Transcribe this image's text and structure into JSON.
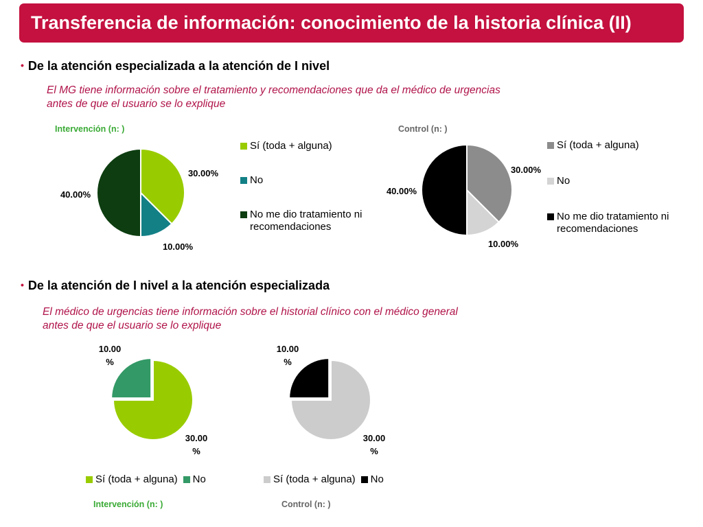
{
  "title": "Transferencia de información: conocimiento de la historia clínica (II)",
  "section1": {
    "heading": "De la atención especializada a la atención de I nivel",
    "subtitle": "El MG tiene información sobre el tratamiento y recomendaciones que da el médico de urgencias antes de que el usuario se lo explique"
  },
  "section2": {
    "heading": "De la atención de I nivel a la atención especializada",
    "subtitle": "El  médico de urgencias tiene información sobre el historial clínico con el médico general antes de que el usuario se lo explique"
  },
  "bullet": "•",
  "chart_data": [
    {
      "type": "pie",
      "title": "Intervención (n: )",
      "categories": [
        "Sí (toda + alguna)",
        "No",
        "No me dio tratamiento ni recomendaciones"
      ],
      "values": [
        37.5,
        12.5,
        50
      ],
      "labels": [
        "30.00%",
        "10.00%",
        "40.00%"
      ],
      "colors": [
        "#99cc00",
        "#138086",
        "#0d3d10"
      ],
      "legend": "right"
    },
    {
      "type": "pie",
      "title": "Control  (n: )",
      "categories": [
        "Sí (toda + alguna)",
        "No",
        "No me dio tratamiento ni recomendaciones"
      ],
      "values": [
        37.5,
        12.5,
        50
      ],
      "labels": [
        "30.00%",
        "10.00%",
        "40.00%"
      ],
      "colors": [
        "#8c8c8c",
        "#d4d4d4",
        "#000000"
      ],
      "legend": "right"
    },
    {
      "type": "pie",
      "title": "Intervención (n: )",
      "categories": [
        "Sí (toda + alguna)",
        "No"
      ],
      "values": [
        75,
        25
      ],
      "labels": [
        "30.00 %",
        "10.00 %"
      ],
      "colors": [
        "#99cc00",
        "#339966"
      ],
      "legend": "bottom"
    },
    {
      "type": "pie",
      "title": "Control  (n: )",
      "categories": [
        "Sí (toda + alguna)",
        "No"
      ],
      "values": [
        75,
        25
      ],
      "labels": [
        "30.00 %",
        "10.00 %"
      ],
      "colors": [
        "#cccccc",
        "#000000"
      ],
      "legend": "bottom"
    }
  ]
}
